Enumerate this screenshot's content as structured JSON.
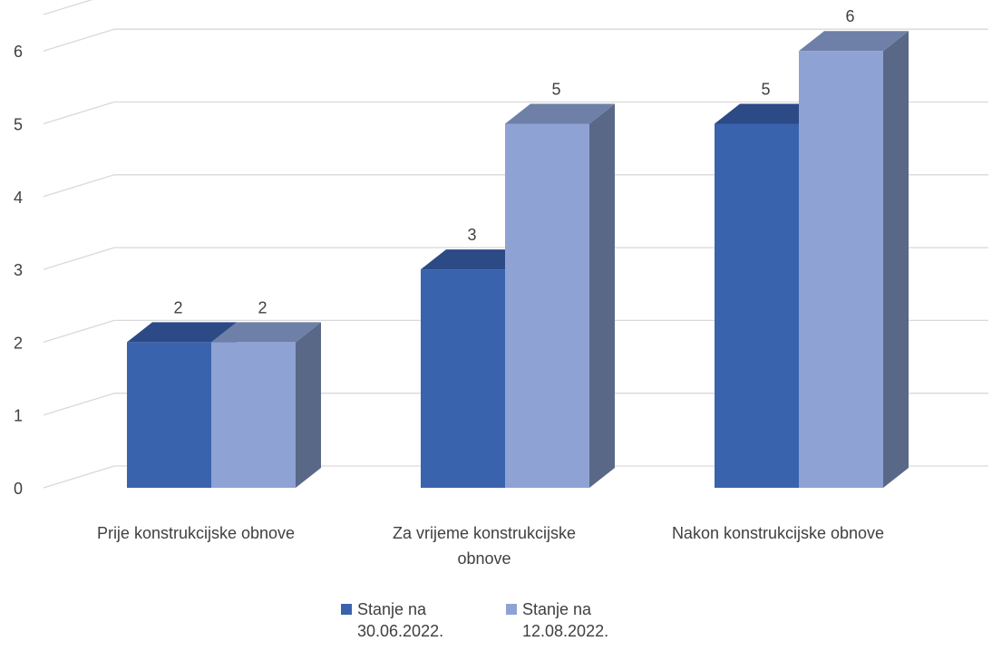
{
  "chart_data": {
    "type": "bar",
    "subtype": "3d-clustered-column",
    "categories": [
      "Prije konstrukcijske obnove",
      "Za vrijeme konstrukcijske\nobnove",
      "Nakon konstrukcijske obnove"
    ],
    "series": [
      {
        "name": "Stanje na\n30.06.2022.",
        "values": [
          2,
          3,
          5
        ],
        "color": "#3A63AE"
      },
      {
        "name": "Stanje na\n12.08.2022.",
        "values": [
          2,
          5,
          6
        ],
        "color": "#8FA2D4"
      }
    ],
    "y_ticks": [
      "0",
      "1",
      "2",
      "3",
      "4",
      "5",
      "6"
    ],
    "ylim": [
      0,
      6.5
    ],
    "grid": true,
    "data_labels": true,
    "legend_position": "bottom"
  }
}
